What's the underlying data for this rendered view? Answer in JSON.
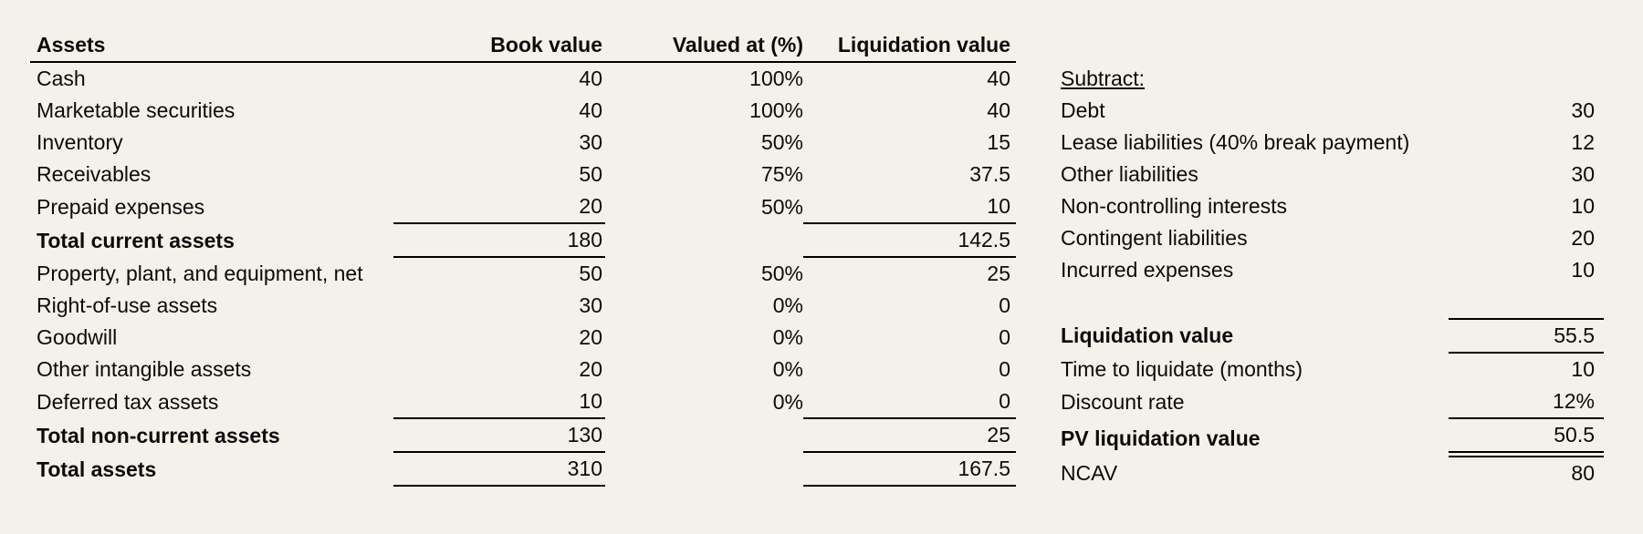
{
  "page": {
    "background_color": "#f4f1ea",
    "text_color": "#0b0b0b",
    "rule_color": "#000000"
  },
  "assets_table": {
    "headers": {
      "assets": "Assets",
      "book": "Book value",
      "pct": "Valued at (%)",
      "liq": "Liquidation value"
    },
    "rows": [
      {
        "label": "Cash",
        "book": "40",
        "pct": "100%",
        "liq": "40"
      },
      {
        "label": "Marketable securities",
        "book": "40",
        "pct": "100%",
        "liq": "40"
      },
      {
        "label": "Inventory",
        "book": "30",
        "pct": "50%",
        "liq": "15"
      },
      {
        "label": "Receivables",
        "book": "50",
        "pct": "75%",
        "liq": "37.5"
      },
      {
        "label": "Prepaid expenses",
        "book": "20",
        "pct": "50%",
        "liq": "10",
        "rule_below": true
      },
      {
        "label": "Total current assets",
        "book": "180",
        "pct": "",
        "liq": "142.5",
        "bold": true,
        "rule_below": true
      },
      {
        "label": "Property, plant, and equipment, net",
        "book": "50",
        "pct": "50%",
        "liq": "25"
      },
      {
        "label": "Right-of-use assets",
        "book": "30",
        "pct": "0%",
        "liq": "0"
      },
      {
        "label": "Goodwill",
        "book": "20",
        "pct": "0%",
        "liq": "0"
      },
      {
        "label": "Other intangible assets",
        "book": "20",
        "pct": "0%",
        "liq": "0"
      },
      {
        "label": "Deferred tax assets",
        "book": "10",
        "pct": "0%",
        "liq": "0",
        "rule_below": true
      },
      {
        "label": "Total non-current assets",
        "book": "130",
        "pct": "",
        "liq": "25",
        "bold": true,
        "rule_below": true
      },
      {
        "label": "Total assets",
        "book": "310",
        "pct": "",
        "liq": "167.5",
        "bold": true,
        "rule_below": true
      }
    ]
  },
  "subtract_table": {
    "rows": [
      {
        "label": "Subtract:",
        "value": "",
        "underline_label": true
      },
      {
        "label": "Debt",
        "value": "30"
      },
      {
        "label": "Lease liabilities (40% break payment)",
        "value": "12"
      },
      {
        "label": "Other liabilities",
        "value": "30"
      },
      {
        "label": "Non-controlling interests",
        "value": "10"
      },
      {
        "label": "Contingent liabilities",
        "value": "20"
      },
      {
        "label": "Incurred expenses",
        "value": "10"
      },
      {
        "label": "",
        "value": ""
      },
      {
        "label": "Liquidation value",
        "value": "55.5",
        "bold": true,
        "rule_above": true,
        "rule_below": "single"
      },
      {
        "label": "Time to liquidate (months)",
        "value": "10"
      },
      {
        "label": "Discount rate",
        "value": "12%",
        "rule_below": "single"
      },
      {
        "label": "PV liquidation value",
        "value": "50.5",
        "bold": true,
        "rule_below": "double"
      },
      {
        "label": "NCAV",
        "value": "80"
      }
    ]
  }
}
